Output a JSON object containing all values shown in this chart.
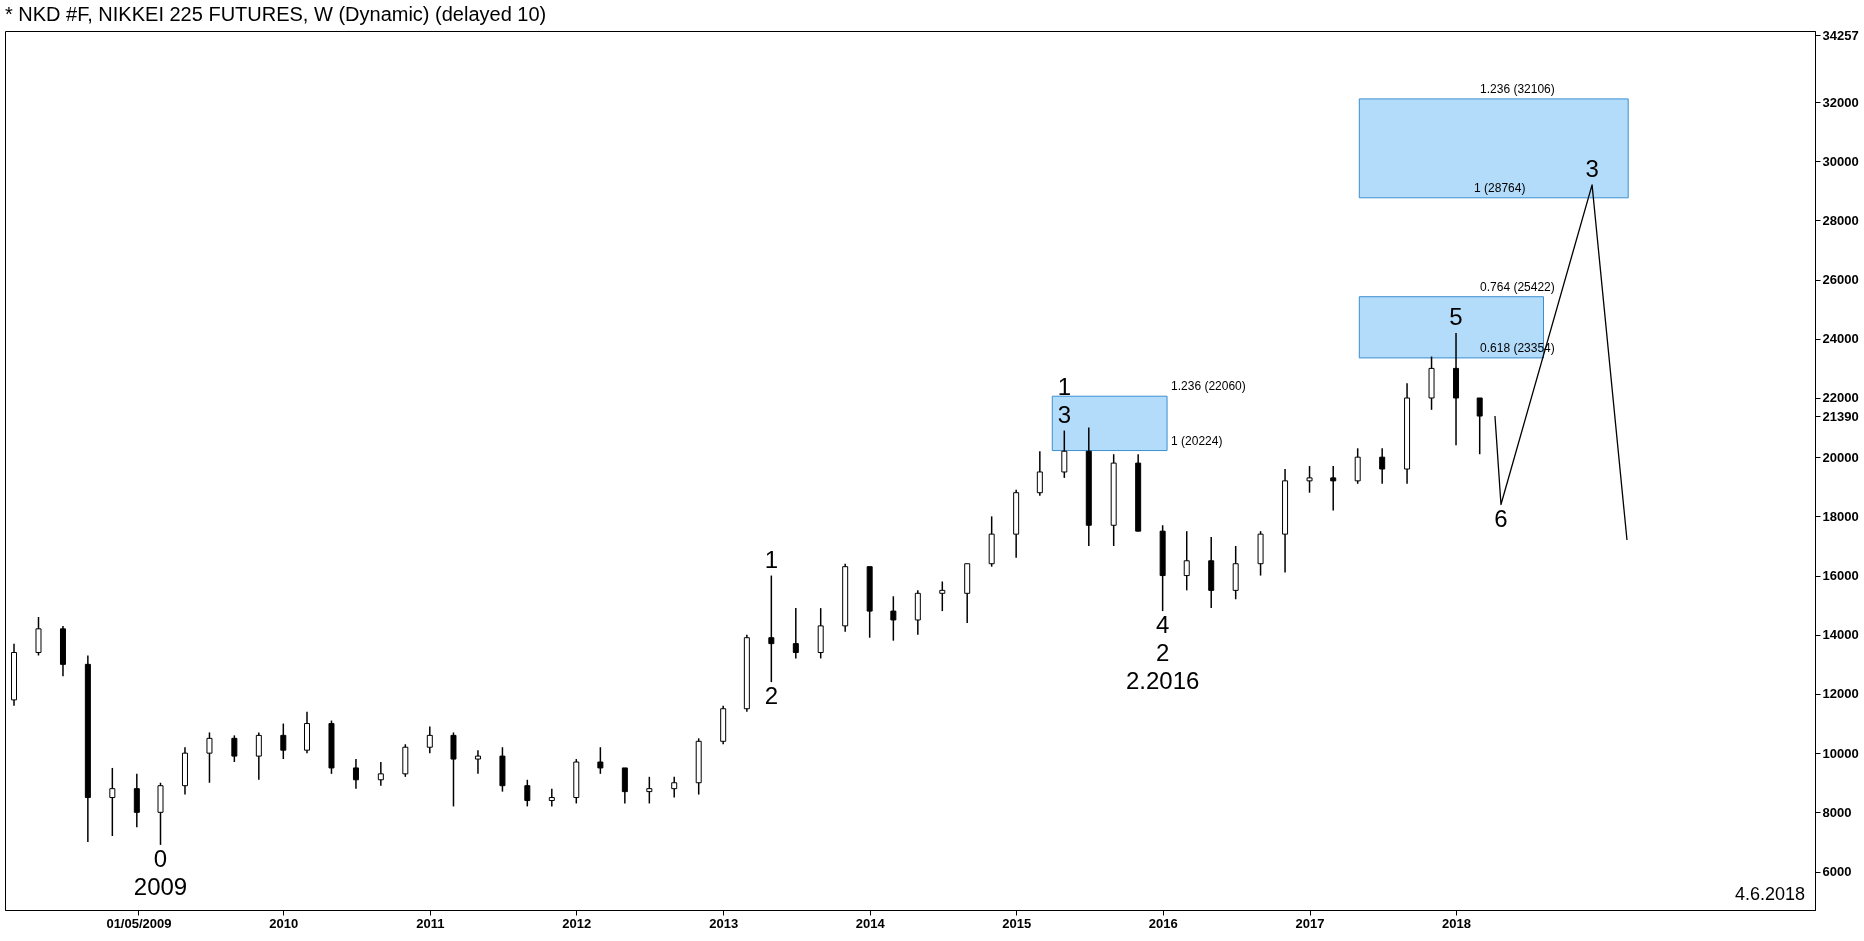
{
  "chart_data": {
    "type": "candlestick",
    "title": "* NKD #F, NIKKEI 225 FUTURES, W (Dynamic) (delayed 10)",
    "color": "#000000",
    "x": [
      "2008-03-01",
      "2008-05-01",
      "2008-07-01",
      "2008-09-01",
      "2008-11-01",
      "2009-01-01",
      "2009-03-01",
      "2009-05-01",
      "2009-07-01",
      "2009-09-01",
      "2009-11-01",
      "2010-01-01",
      "2010-03-01",
      "2010-05-01",
      "2010-07-01",
      "2010-09-01",
      "2010-11-01",
      "2011-01-01",
      "2011-03-01",
      "2011-05-01",
      "2011-07-01",
      "2011-09-01",
      "2011-11-01",
      "2012-01-01",
      "2012-03-01",
      "2012-05-01",
      "2012-07-01",
      "2012-09-01",
      "2012-11-01",
      "2013-01-01",
      "2013-03-01",
      "2013-05-01",
      "2013-07-01",
      "2013-09-01",
      "2013-11-01",
      "2014-01-01",
      "2014-03-01",
      "2014-05-01",
      "2014-07-01",
      "2014-09-01",
      "2014-11-01",
      "2015-01-01",
      "2015-03-01",
      "2015-05-01",
      "2015-07-01",
      "2015-09-01",
      "2015-11-01",
      "2016-01-01",
      "2016-03-01",
      "2016-05-01",
      "2016-07-01",
      "2016-09-01",
      "2016-11-01",
      "2017-01-01",
      "2017-03-01",
      "2017-05-01",
      "2017-07-01",
      "2017-09-01",
      "2017-11-01",
      "2018-01-01",
      "2018-03-01"
    ],
    "ohlc": [
      [
        11800,
        13700,
        11600,
        13400
      ],
      [
        13400,
        14600,
        13300,
        14200
      ],
      [
        14200,
        14300,
        12600,
        13000
      ],
      [
        13000,
        13300,
        7000,
        8500
      ],
      [
        8500,
        9500,
        7200,
        8800
      ],
      [
        8800,
        9300,
        7500,
        8000
      ],
      [
        8000,
        9000,
        6900,
        8900
      ],
      [
        8900,
        10200,
        8600,
        10000
      ],
      [
        10000,
        10700,
        9000,
        10500
      ],
      [
        10500,
        10600,
        9700,
        9900
      ],
      [
        9900,
        10700,
        9100,
        10600
      ],
      [
        10600,
        11000,
        9800,
        10100
      ],
      [
        10100,
        11400,
        10000,
        11000
      ],
      [
        11000,
        11100,
        9300,
        9500
      ],
      [
        9500,
        9800,
        8800,
        9100
      ],
      [
        9100,
        9700,
        8900,
        9300
      ],
      [
        9300,
        10300,
        9200,
        10200
      ],
      [
        10200,
        10900,
        10000,
        10600
      ],
      [
        10600,
        10700,
        8200,
        9800
      ],
      [
        9800,
        10100,
        9300,
        9900
      ],
      [
        9900,
        10200,
        8700,
        8900
      ],
      [
        8900,
        9100,
        8200,
        8400
      ],
      [
        8400,
        8800,
        8200,
        8500
      ],
      [
        8500,
        9800,
        8300,
        9700
      ],
      [
        9700,
        10200,
        9300,
        9500
      ],
      [
        9500,
        9500,
        8300,
        8700
      ],
      [
        8700,
        9200,
        8300,
        8800
      ],
      [
        8800,
        9200,
        8500,
        9000
      ],
      [
        9000,
        10500,
        8600,
        10400
      ],
      [
        10400,
        11600,
        10300,
        11500
      ],
      [
        11500,
        14000,
        11400,
        13900
      ],
      [
        13900,
        16000,
        12400,
        13700
      ],
      [
        13700,
        14900,
        13200,
        13400
      ],
      [
        13400,
        14900,
        13200,
        14300
      ],
      [
        14300,
        16400,
        14100,
        16300
      ],
      [
        16300,
        16300,
        13900,
        14800
      ],
      [
        14800,
        15300,
        13800,
        14500
      ],
      [
        14500,
        15500,
        14000,
        15400
      ],
      [
        15400,
        15800,
        14800,
        15500
      ],
      [
        15400,
        16400,
        14400,
        16400
      ],
      [
        16400,
        18000,
        16300,
        17400
      ],
      [
        17400,
        18900,
        16600,
        18800
      ],
      [
        18800,
        20200,
        18700,
        19500
      ],
      [
        19500,
        20900,
        19300,
        20200
      ],
      [
        20200,
        21000,
        17000,
        17700
      ],
      [
        17700,
        20100,
        17000,
        19800
      ],
      [
        19800,
        20100,
        17500,
        17500
      ],
      [
        17500,
        17700,
        14800,
        16000
      ],
      [
        16000,
        17500,
        15500,
        16500
      ],
      [
        16500,
        17300,
        14900,
        15500
      ],
      [
        15500,
        17000,
        15200,
        16400
      ],
      [
        16400,
        17500,
        16000,
        17400
      ],
      [
        17400,
        19600,
        16100,
        19200
      ],
      [
        19200,
        19700,
        18800,
        19300
      ],
      [
        19300,
        19700,
        18200,
        19200
      ],
      [
        19200,
        20300,
        19100,
        20000
      ],
      [
        20000,
        20300,
        19100,
        19600
      ],
      [
        19600,
        22500,
        19100,
        22000
      ],
      [
        22000,
        23400,
        21600,
        23000
      ],
      [
        23000,
        24200,
        20400,
        22000
      ],
      [
        22000,
        22000,
        20100,
        21390
      ]
    ],
    "series": [
      {
        "type": "area",
        "color": "#b3dcfa",
        "x": [
          "2015-04-01",
          "2016-01-12"
        ],
        "values": [
          null,
          null
        ],
        "upper": [
          22060,
          22060
        ],
        "lower": [
          20224,
          20224
        ]
      },
      {
        "type": "area",
        "color": "#b3dcfa",
        "x": [
          "2017-05-05",
          "2018-08-07"
        ],
        "values": [
          null,
          null
        ],
        "upper": [
          25422,
          25422
        ],
        "lower": [
          23354,
          23354
        ]
      },
      {
        "type": "area",
        "color": "#b3dcfa",
        "x": [
          "2017-05-05",
          "2019-03-06"
        ],
        "values": [
          null,
          null
        ],
        "upper": [
          32106,
          32106
        ],
        "lower": [
          28764,
          28764
        ]
      },
      {
        "type": "line",
        "color": "#000000",
        "x": [
          "2018-04-08",
          "2018-04-23",
          "2018-12-06",
          "2019-03-03"
        ],
        "values": [
          21390,
          18400,
          29200,
          17200
        ]
      }
    ],
    "xlim": [
      "2008-02-20",
      "2020-06-01"
    ],
    "xticks": [
      {
        "value": "2009-01-05",
        "label": "01/05/2009"
      },
      {
        "value": "2010-01-01",
        "label": "2010"
      },
      {
        "value": "2011-01-01",
        "label": "2011"
      },
      {
        "value": "2012-01-01",
        "label": "2012"
      },
      {
        "value": "2013-01-01",
        "label": "2013"
      },
      {
        "value": "2014-01-01",
        "label": "2014"
      },
      {
        "value": "2015-01-01",
        "label": "2015"
      },
      {
        "value": "2016-01-01",
        "label": "2016"
      },
      {
        "value": "2017-01-01",
        "label": "2017"
      },
      {
        "value": "2018-01-01",
        "label": "2018"
      }
    ],
    "ylim": [
      4700,
      34400
    ],
    "yticks": [
      6000,
      8000,
      10000,
      12000,
      14000,
      16000,
      18000,
      20000,
      21390,
      22000,
      24000,
      26000,
      28000,
      30000,
      32000,
      34257
    ],
    "grid": false,
    "annotations": [
      {
        "text": "0",
        "x": "2009-03-01",
        "y": 6900
      },
      {
        "text": "2009",
        "x": "2009-03-01",
        "y": 6900
      },
      {
        "text": "1",
        "x": "2013-05-01",
        "y": 16000
      },
      {
        "text": "2",
        "x": "2013-05-01",
        "y": 12400
      },
      {
        "text": "3",
        "x": "2015-05-01",
        "y": 20900
      },
      {
        "text": "1",
        "x": "2015-05-01",
        "y": 20900
      },
      {
        "text": "4",
        "x": "2016-01-01",
        "y": 14800
      },
      {
        "text": "2",
        "x": "2016-01-01",
        "y": 14800
      },
      {
        "text": "2.2016",
        "x": "2016-01-01",
        "y": 14800
      },
      {
        "text": "5",
        "x": "2018-01-01",
        "y": 24200
      },
      {
        "text": "6",
        "x": "2018-04-23",
        "y": 18400
      },
      {
        "text": "3",
        "x": "2018-12-06",
        "y": 29200
      },
      {
        "text": "1.236 (22060)",
        "x": "2016-01-12",
        "y": 22060
      },
      {
        "text": "1 (20224)",
        "x": "2016-01-12",
        "y": 20224
      },
      {
        "text": "0.764 (25422)",
        "x": "2018-06-03",
        "y": 25422
      },
      {
        "text": "0.618 (23354)",
        "x": "2018-06-03",
        "y": 23354
      },
      {
        "text": "1.236 (32106)",
        "x": "2018-06-03",
        "y": 32106
      },
      {
        "text": "1 (28764)",
        "x": "2018-04-20",
        "y": 28764
      },
      "4.6.2018"
    ]
  }
}
